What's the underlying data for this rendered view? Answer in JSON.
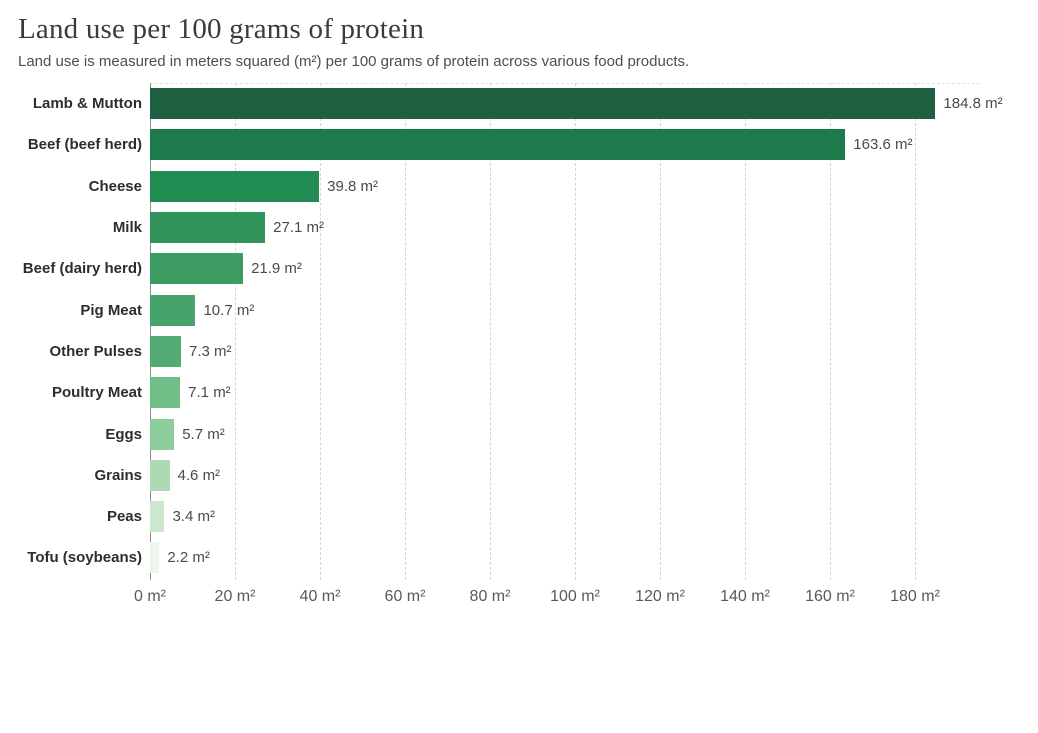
{
  "header": {
    "title": "Land use per 100 grams of protein",
    "subtitle": "Land use is measured in meters squared (m²) per 100 grams of protein across various food products."
  },
  "chart_data": {
    "type": "bar",
    "orientation": "horizontal",
    "title": "Land use per 100 grams of protein",
    "xlabel": "",
    "ylabel": "",
    "unit": "m²",
    "categories": [
      "Lamb & Mutton",
      "Beef (beef herd)",
      "Cheese",
      "Milk",
      "Beef (dairy herd)",
      "Pig Meat",
      "Other Pulses",
      "Poultry Meat",
      "Eggs",
      "Grains",
      "Peas",
      "Tofu (soybeans)"
    ],
    "values": [
      184.8,
      163.6,
      39.8,
      27.1,
      21.9,
      10.7,
      7.3,
      7.1,
      5.7,
      4.6,
      3.4,
      2.2
    ],
    "value_labels": [
      "184.8 m²",
      "163.6 m²",
      "39.8 m²",
      "27.1 m²",
      "21.9 m²",
      "10.7 m²",
      "7.3 m²",
      "7.1 m²",
      "5.7 m²",
      "4.6 m²",
      "3.4 m²",
      "2.2 m²"
    ],
    "bar_colors": [
      "#1d6142",
      "#1f7a4b",
      "#228c55",
      "#2f935a",
      "#3c9c62",
      "#46a46b",
      "#52ab73",
      "#70bd87",
      "#8dcc9d",
      "#aed9b4",
      "#cbe7cd",
      "#edf5ec"
    ],
    "x_ticks": [
      0,
      20,
      40,
      60,
      80,
      100,
      120,
      140,
      160,
      180
    ],
    "x_tick_labels": [
      "0 m²",
      "20 m²",
      "40 m²",
      "60 m²",
      "80 m²",
      "100 m²",
      "120 m²",
      "140 m²",
      "160 m²",
      "180 m²"
    ],
    "xlim": [
      0,
      195
    ],
    "grid": "dashed-vertical",
    "legend": "none"
  }
}
